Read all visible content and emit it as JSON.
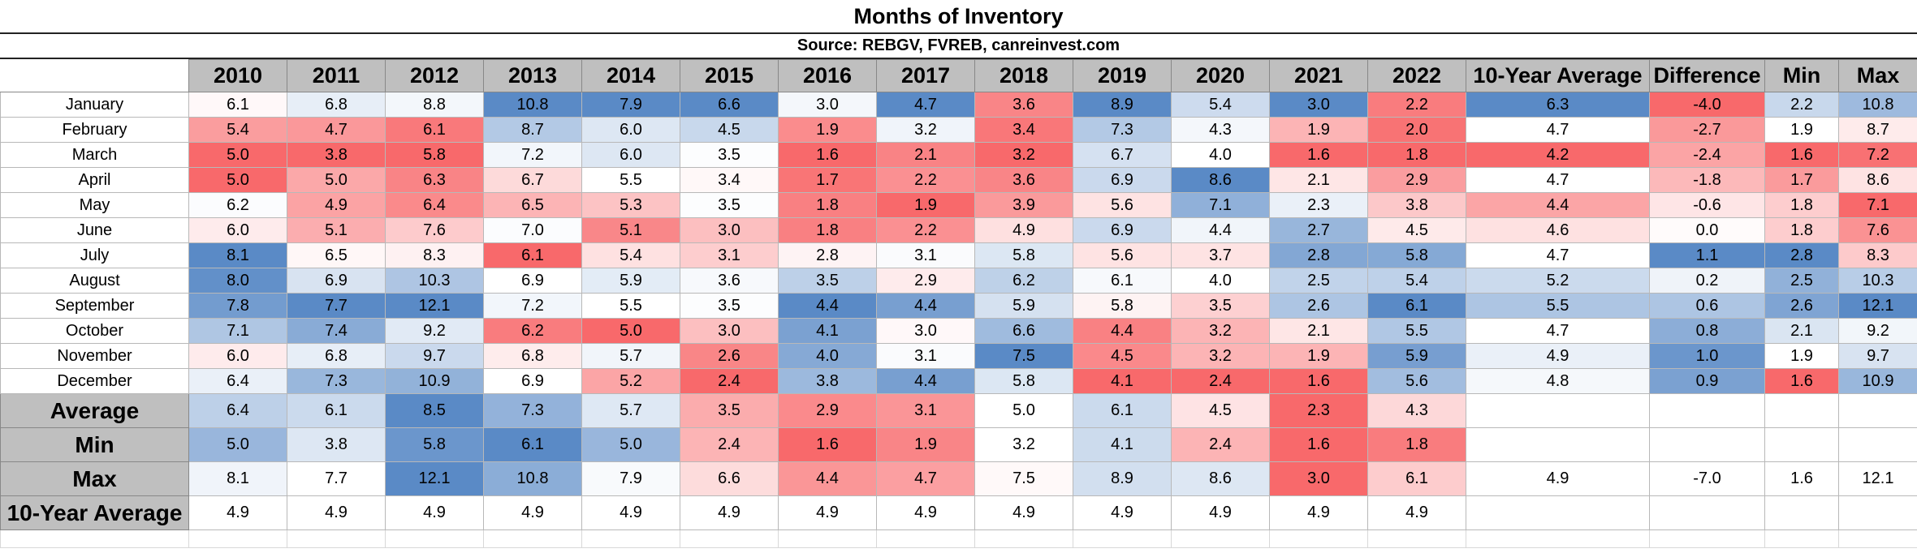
{
  "title": "Months of Inventory",
  "source": "Source: REBGV, FVREB, canreinvest.com",
  "colors": {
    "low": "#f8696b",
    "mid": "#ffffff",
    "high": "#5a8ac6",
    "header_bg": "#bfbfbf"
  },
  "chart_data": {
    "type": "table",
    "title": "Months of Inventory",
    "subtitle": "Source: REBGV, FVREB, canreinvest.com",
    "year_columns": [
      "2010",
      "2011",
      "2012",
      "2013",
      "2014",
      "2015",
      "2016",
      "2017",
      "2018",
      "2019",
      "2020",
      "2021",
      "2022"
    ],
    "stat_columns": [
      "10-Year Average",
      "Difference",
      "Min",
      "Max"
    ],
    "rows": [
      {
        "label": "January",
        "values": [
          6.1,
          6.8,
          8.8,
          10.8,
          7.9,
          6.6,
          3.0,
          4.7,
          3.6,
          8.9,
          5.4,
          3.0,
          2.2
        ],
        "stats": [
          6.3,
          -4.0,
          2.2,
          10.8
        ]
      },
      {
        "label": "February",
        "values": [
          5.4,
          4.7,
          6.1,
          8.7,
          6.0,
          4.5,
          1.9,
          3.2,
          3.4,
          7.3,
          4.3,
          1.9,
          2.0
        ],
        "stats": [
          4.7,
          -2.7,
          1.9,
          8.7
        ]
      },
      {
        "label": "March",
        "values": [
          5.0,
          3.8,
          5.8,
          7.2,
          6.0,
          3.5,
          1.6,
          2.1,
          3.2,
          6.7,
          4.0,
          1.6,
          1.8
        ],
        "stats": [
          4.2,
          -2.4,
          1.6,
          7.2
        ]
      },
      {
        "label": "April",
        "values": [
          5.0,
          5.0,
          6.3,
          6.7,
          5.5,
          3.4,
          1.7,
          2.2,
          3.6,
          6.9,
          8.6,
          2.1,
          2.9
        ],
        "stats": [
          4.7,
          -1.8,
          1.7,
          8.6
        ]
      },
      {
        "label": "May",
        "values": [
          6.2,
          4.9,
          6.4,
          6.5,
          5.3,
          3.5,
          1.8,
          1.9,
          3.9,
          5.6,
          7.1,
          2.3,
          3.8
        ],
        "stats": [
          4.4,
          -0.6,
          1.8,
          7.1
        ]
      },
      {
        "label": "June",
        "values": [
          6.0,
          5.1,
          7.6,
          7.0,
          5.1,
          3.0,
          1.8,
          2.2,
          4.9,
          6.9,
          4.4,
          2.7,
          4.5
        ],
        "stats": [
          4.6,
          0.0,
          1.8,
          7.6
        ]
      },
      {
        "label": "July",
        "values": [
          8.1,
          6.5,
          8.3,
          6.1,
          5.4,
          3.1,
          2.8,
          3.1,
          5.8,
          5.6,
          3.7,
          2.8,
          5.8
        ],
        "stats": [
          4.7,
          1.1,
          2.8,
          8.3
        ]
      },
      {
        "label": "August",
        "values": [
          8.0,
          6.9,
          10.3,
          6.9,
          5.9,
          3.6,
          3.5,
          2.9,
          6.2,
          6.1,
          4.0,
          2.5,
          5.4
        ],
        "stats": [
          5.2,
          0.2,
          2.5,
          10.3
        ]
      },
      {
        "label": "September",
        "values": [
          7.8,
          7.7,
          12.1,
          7.2,
          5.5,
          3.5,
          4.4,
          4.4,
          5.9,
          5.8,
          3.5,
          2.6,
          6.1
        ],
        "stats": [
          5.5,
          0.6,
          2.6,
          12.1
        ]
      },
      {
        "label": "October",
        "values": [
          7.1,
          7.4,
          9.2,
          6.2,
          5.0,
          3.0,
          4.1,
          3.0,
          6.6,
          4.4,
          3.2,
          2.1,
          5.5
        ],
        "stats": [
          4.7,
          0.8,
          2.1,
          9.2
        ]
      },
      {
        "label": "November",
        "values": [
          6.0,
          6.8,
          9.7,
          6.8,
          5.7,
          2.6,
          4.0,
          3.1,
          7.5,
          4.5,
          3.2,
          1.9,
          5.9
        ],
        "stats": [
          4.9,
          1.0,
          1.9,
          9.7
        ]
      },
      {
        "label": "December",
        "values": [
          6.4,
          7.3,
          10.9,
          6.9,
          5.2,
          2.4,
          3.8,
          4.4,
          5.8,
          4.1,
          2.4,
          1.6,
          5.6
        ],
        "stats": [
          4.8,
          0.9,
          1.6,
          10.9
        ]
      }
    ],
    "summary_rows": [
      {
        "label": "Average",
        "values": [
          6.4,
          6.1,
          8.5,
          7.3,
          5.7,
          3.5,
          2.9,
          3.1,
          5.0,
          6.1,
          4.5,
          2.3,
          4.3
        ],
        "stats": [
          "",
          "",
          "",
          ""
        ]
      },
      {
        "label": "Min",
        "values": [
          5.0,
          3.8,
          5.8,
          6.1,
          5.0,
          2.4,
          1.6,
          1.9,
          3.2,
          4.1,
          2.4,
          1.6,
          1.8
        ],
        "stats": [
          "",
          "",
          "",
          ""
        ]
      },
      {
        "label": "Max",
        "values": [
          8.1,
          7.7,
          12.1,
          10.8,
          7.9,
          6.6,
          4.4,
          4.7,
          7.5,
          8.9,
          8.6,
          3.0,
          6.1
        ],
        "stats": [
          4.9,
          -7.0,
          1.6,
          12.1
        ]
      },
      {
        "label": "10-Year Average",
        "values": [
          4.9,
          4.9,
          4.9,
          4.9,
          4.9,
          4.9,
          4.9,
          4.9,
          4.9,
          4.9,
          4.9,
          4.9,
          4.9
        ],
        "stats": [
          "",
          "",
          "",
          ""
        ]
      }
    ]
  }
}
